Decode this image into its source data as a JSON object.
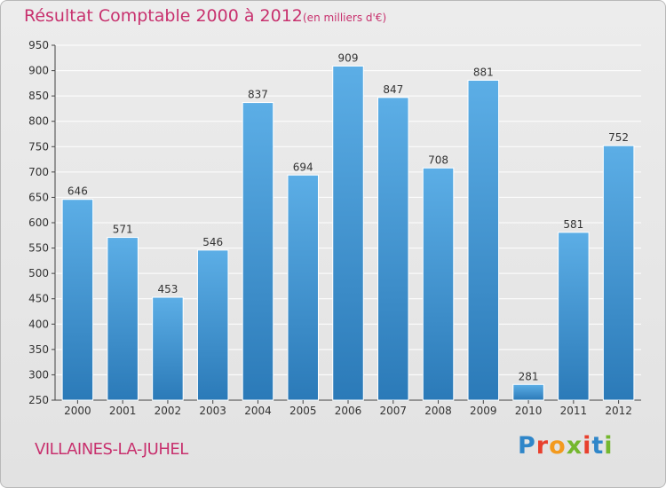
{
  "title": "Résultat Comptable 2000 à 2012",
  "subtitle": "(en milliers d'€)",
  "commune": "VILLAINES-LA-JUHEL",
  "logo": {
    "letters": [
      "P",
      "r",
      "o",
      "x",
      "i",
      "t",
      "i"
    ],
    "colors": [
      "#2f86c9",
      "#e8402d",
      "#f39a1e",
      "#74b72e",
      "#e8402d",
      "#2f86c9",
      "#74b72e"
    ]
  },
  "colors": {
    "bar_top": "#5caee6",
    "bar_bottom": "#2b7ab8",
    "title": "#c8316e",
    "axis": "#444444",
    "grid": "#ffffff"
  },
  "chart_data": {
    "type": "bar",
    "title": "Résultat Comptable 2000 à 2012",
    "ylabel": "en milliers d'€",
    "xlabel": "",
    "categories": [
      "2000",
      "2001",
      "2002",
      "2003",
      "2004",
      "2005",
      "2006",
      "2007",
      "2008",
      "2009",
      "2010",
      "2011",
      "2012"
    ],
    "values": [
      646,
      571,
      453,
      546,
      837,
      694,
      909,
      847,
      708,
      881,
      281,
      581,
      752
    ],
    "ylim": [
      250,
      950
    ],
    "yticks": [
      250,
      300,
      350,
      400,
      450,
      500,
      550,
      600,
      650,
      700,
      750,
      800,
      850,
      900,
      950
    ],
    "grid": true
  }
}
